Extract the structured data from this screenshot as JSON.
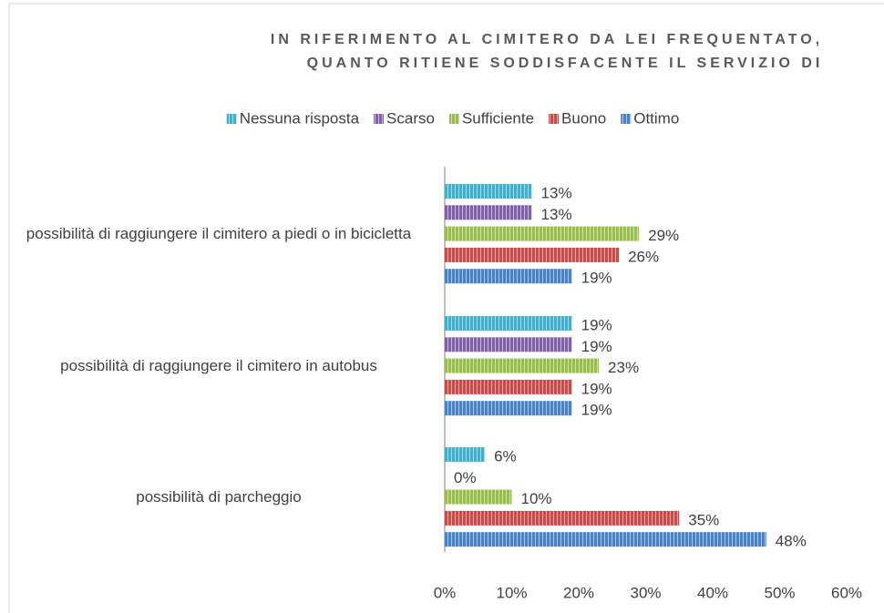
{
  "chart_data": {
    "type": "hbar",
    "title": [
      "IN RIFERIMENTO AL CIMITERO DA LEI FREQUENTATO,",
      "QUANTO RITIENE SODDISFACENTE IL SERVIZIO DI"
    ],
    "categories": [
      "possibilità di raggiungere il cimitero a piedi o in bicicletta",
      "possibilità di raggiungere il cimitero in autobus",
      "possibilità di parcheggio"
    ],
    "series": [
      {
        "name": "Nessuna risposta",
        "color": "#4bacc6",
        "values": [
          13,
          19,
          6
        ],
        "value_labels": [
          "13%",
          "19%",
          "6%"
        ]
      },
      {
        "name": "Scarso",
        "color": "#8064a2",
        "values": [
          13,
          19,
          0
        ],
        "value_labels": [
          "13%",
          "19%",
          "0%"
        ]
      },
      {
        "name": "Sufficiente",
        "color": "#9bbb59",
        "values": [
          29,
          23,
          10
        ],
        "value_labels": [
          "29%",
          "23%",
          "10%"
        ]
      },
      {
        "name": "Buono",
        "color": "#c0504d",
        "values": [
          26,
          19,
          35
        ],
        "value_labels": [
          "26%",
          "19%",
          "35%"
        ]
      },
      {
        "name": "Ottimo",
        "color": "#4f81bd",
        "values": [
          19,
          19,
          48
        ],
        "value_labels": [
          "19%",
          "19%",
          "48%"
        ]
      }
    ],
    "xlim": [
      0,
      60
    ],
    "xticks": [
      {
        "value": 0,
        "label": "0%"
      },
      {
        "value": 10,
        "label": "10%"
      },
      {
        "value": 20,
        "label": "20%"
      },
      {
        "value": 30,
        "label": "30%"
      },
      {
        "value": 40,
        "label": "40%"
      },
      {
        "value": 50,
        "label": "50%"
      },
      {
        "value": 60,
        "label": "60%"
      }
    ],
    "legend": "top"
  }
}
